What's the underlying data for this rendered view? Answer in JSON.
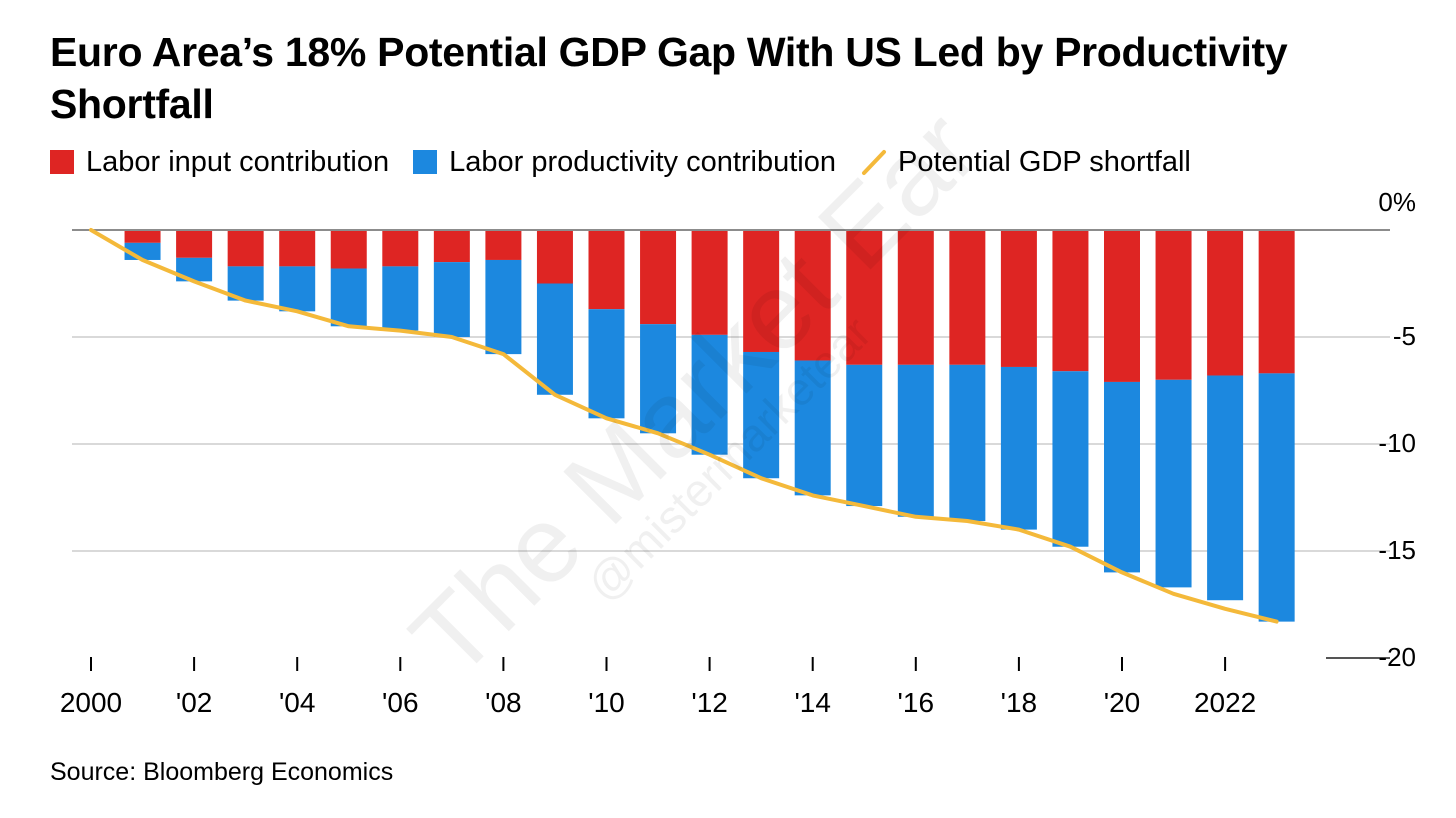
{
  "title": "Euro Area’s 18% Potential GDP Gap With US Led by Productivity Shortfall",
  "legend": {
    "labor_input": "Labor input contribution",
    "labor_productivity": "Labor productivity contribution",
    "shortfall": "Potential GDP shortfall"
  },
  "source": "Source: Bloomberg Economics",
  "watermark": {
    "main": "The Market Ear",
    "handle": "@mistermarketear"
  },
  "colors": {
    "labor_input": "#de2523",
    "labor_productivity": "#1c88df",
    "shortfall": "#f4b93a",
    "grid": "#d9d9d9",
    "zero_line": "#8c8c8c"
  },
  "chart_data": {
    "type": "bar",
    "stacked": true,
    "x": [
      2001,
      2002,
      2003,
      2004,
      2005,
      2006,
      2007,
      2008,
      2009,
      2010,
      2011,
      2012,
      2013,
      2014,
      2015,
      2016,
      2017,
      2018,
      2019,
      2020,
      2021,
      2022,
      2023
    ],
    "series": [
      {
        "name": "Labor input contribution",
        "type": "bar",
        "values": [
          -0.6,
          -1.3,
          -1.7,
          -1.7,
          -1.8,
          -1.7,
          -1.5,
          -1.4,
          -2.5,
          -3.7,
          -4.4,
          -4.9,
          -5.7,
          -6.1,
          -6.3,
          -6.3,
          -6.3,
          -6.4,
          -6.6,
          -7.1,
          -7.0,
          -6.8,
          -6.7
        ],
        "color": "#de2523"
      },
      {
        "name": "Labor productivity contribution",
        "type": "bar",
        "values": [
          -0.8,
          -1.1,
          -1.6,
          -2.1,
          -2.7,
          -3.0,
          -3.5,
          -4.4,
          -5.2,
          -5.1,
          -5.1,
          -5.6,
          -5.9,
          -6.3,
          -6.6,
          -7.1,
          -7.3,
          -7.6,
          -8.2,
          -8.9,
          -9.7,
          -10.5,
          -11.6
        ],
        "color": "#1c88df"
      },
      {
        "name": "Potential GDP shortfall",
        "type": "line",
        "x": [
          2000,
          2001,
          2002,
          2003,
          2004,
          2005,
          2006,
          2007,
          2008,
          2009,
          2010,
          2011,
          2012,
          2013,
          2014,
          2015,
          2016,
          2017,
          2018,
          2019,
          2020,
          2021,
          2022,
          2023
        ],
        "values": [
          0,
          -1.4,
          -2.4,
          -3.3,
          -3.8,
          -4.5,
          -4.7,
          -5.0,
          -5.8,
          -7.7,
          -8.8,
          -9.5,
          -10.5,
          -11.6,
          -12.4,
          -12.9,
          -13.4,
          -13.6,
          -14.0,
          -14.8,
          -16.0,
          -17.0,
          -17.7,
          -18.3
        ],
        "color": "#f4b93a"
      }
    ],
    "y_ticks": [
      0,
      -5,
      -10,
      -15,
      -20
    ],
    "y_tick_labels": [
      "0%",
      "-5",
      "-10",
      "-15",
      "-20"
    ],
    "ylim": [
      -20,
      0
    ],
    "x_ticks": [
      2000,
      2002,
      2004,
      2006,
      2008,
      2010,
      2012,
      2014,
      2016,
      2018,
      2020,
      2022
    ],
    "x_tick_labels": [
      "2000",
      "'02",
      "'04",
      "'06",
      "'08",
      "'10",
      "'12",
      "'14",
      "'16",
      "'18",
      "'20",
      "2022"
    ],
    "xlim": [
      2000,
      2023
    ],
    "grid": true,
    "legend_position": "top-left",
    "y_axis_side": "right"
  }
}
